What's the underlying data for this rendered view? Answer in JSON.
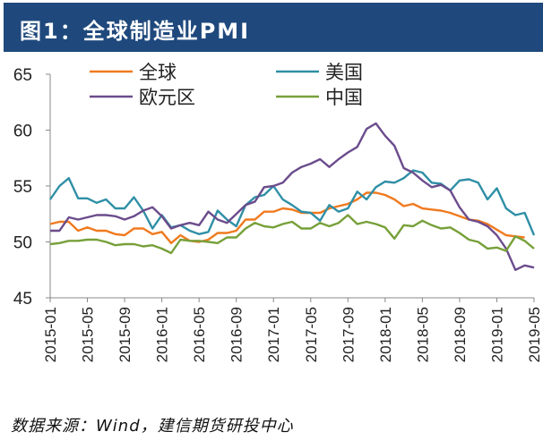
{
  "header": {
    "title": "图1：全球制造业PMI"
  },
  "source": "数据来源：Wind，建信期货研投中心",
  "chart_data": {
    "type": "line",
    "title": "全球制造业PMI",
    "xlabel": "",
    "ylabel": "",
    "ylim": [
      45,
      65
    ],
    "yticks": [
      "45",
      "50",
      "55",
      "60",
      "65"
    ],
    "start": "2015-01",
    "xticks": [
      "2015-01",
      "2015-05",
      "2015-09",
      "2016-01",
      "2016-05",
      "2016-09",
      "2017-01",
      "2017-05",
      "2017-09",
      "2018-01",
      "2018-05",
      "2018-09",
      "2019-01",
      "2019-05"
    ],
    "legend_placement": "top",
    "series": [
      {
        "name": "全球",
        "color": "#F07A1F",
        "values": [
          51.6,
          51.8,
          51.8,
          51.0,
          51.3,
          51.0,
          51.0,
          50.7,
          50.6,
          51.2,
          51.2,
          50.7,
          50.9,
          49.9,
          50.6,
          50.1,
          50.0,
          50.2,
          50.8,
          50.8,
          51.0,
          52.0,
          52.0,
          52.7,
          52.7,
          53.0,
          52.9,
          52.6,
          52.6,
          52.6,
          53.0,
          53.2,
          53.4,
          53.8,
          54.4,
          54.4,
          54.2,
          53.8,
          53.2,
          53.4,
          53.0,
          52.9,
          52.8,
          52.6,
          52.3,
          52.0,
          51.9,
          51.6,
          51.1,
          50.6,
          50.5,
          50.4
        ]
      },
      {
        "name": "美国",
        "color": "#2F8FA6",
        "values": [
          53.8,
          55.0,
          55.7,
          53.9,
          53.9,
          53.5,
          53.8,
          53.0,
          53.0,
          54.0,
          52.8,
          51.2,
          52.4,
          51.3,
          51.5,
          51.0,
          50.7,
          50.9,
          52.8,
          52.0,
          51.4,
          53.3,
          54.0,
          54.2,
          55.0,
          53.8,
          53.3,
          52.7,
          52.6,
          51.9,
          53.3,
          52.7,
          53.0,
          54.5,
          53.8,
          54.9,
          55.4,
          55.3,
          55.7,
          56.4,
          56.2,
          55.3,
          55.2,
          54.6,
          55.5,
          55.6,
          55.3,
          53.8,
          54.8,
          53.0,
          52.4,
          52.6,
          50.6
        ]
      },
      {
        "name": "欧元区",
        "color": "#6B4C8C",
        "values": [
          51.0,
          51.0,
          52.2,
          52.0,
          52.2,
          52.4,
          52.4,
          52.3,
          52.0,
          52.3,
          52.8,
          53.1,
          52.3,
          51.2,
          51.5,
          51.7,
          51.5,
          52.7,
          52.0,
          51.7,
          52.5,
          53.3,
          53.6,
          54.9,
          55.0,
          55.3,
          56.2,
          56.7,
          57.0,
          57.4,
          56.7,
          57.4,
          58.0,
          58.5,
          60.1,
          60.6,
          59.5,
          58.6,
          56.6,
          56.2,
          55.5,
          54.9,
          55.1,
          54.6,
          53.1,
          52.0,
          51.8,
          51.4,
          50.6,
          49.4,
          47.5,
          47.9,
          47.7
        ]
      },
      {
        "name": "中国",
        "color": "#77A03A",
        "values": [
          49.8,
          49.9,
          50.1,
          50.1,
          50.2,
          50.2,
          50.0,
          49.7,
          49.8,
          49.8,
          49.6,
          49.7,
          49.4,
          49.0,
          50.2,
          50.1,
          50.1,
          50.0,
          49.9,
          50.4,
          50.4,
          51.2,
          51.7,
          51.4,
          51.3,
          51.6,
          51.8,
          51.2,
          51.2,
          51.7,
          51.4,
          51.7,
          52.4,
          51.6,
          51.8,
          51.6,
          51.3,
          50.3,
          51.5,
          51.4,
          51.9,
          51.5,
          51.2,
          51.3,
          50.8,
          50.2,
          50.0,
          49.4,
          49.5,
          49.2,
          50.5,
          50.1,
          49.4
        ]
      }
    ]
  }
}
